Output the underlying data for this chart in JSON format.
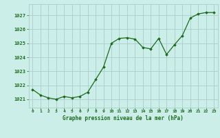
{
  "x": [
    0,
    1,
    2,
    3,
    4,
    5,
    6,
    7,
    8,
    9,
    10,
    11,
    12,
    13,
    14,
    15,
    16,
    17,
    18,
    19,
    20,
    21,
    22,
    23
  ],
  "y": [
    1021.7,
    1021.3,
    1021.1,
    1021.0,
    1021.2,
    1021.1,
    1021.2,
    1021.5,
    1022.4,
    1023.3,
    1025.0,
    1025.35,
    1025.4,
    1025.3,
    1024.7,
    1024.6,
    1025.35,
    1024.2,
    1024.9,
    1025.55,
    1026.8,
    1027.1,
    1027.2,
    1027.2
  ],
  "bg_color": "#cceee8",
  "line_color": "#1a6b1a",
  "marker_color": "#1a6b1a",
  "grid_color": "#aacccc",
  "xlabel": "Graphe pression niveau de la mer (hPa)",
  "xlabel_color": "#1a6b1a",
  "tick_color": "#1a6b1a",
  "yticks": [
    1021,
    1022,
    1023,
    1024,
    1025,
    1026,
    1027
  ],
  "xticks": [
    0,
    1,
    2,
    3,
    4,
    5,
    6,
    7,
    8,
    9,
    10,
    11,
    12,
    13,
    14,
    15,
    16,
    17,
    18,
    19,
    20,
    21,
    22,
    23
  ],
  "ylim": [
    1020.4,
    1027.8
  ],
  "xlim": [
    -0.5,
    23.5
  ]
}
